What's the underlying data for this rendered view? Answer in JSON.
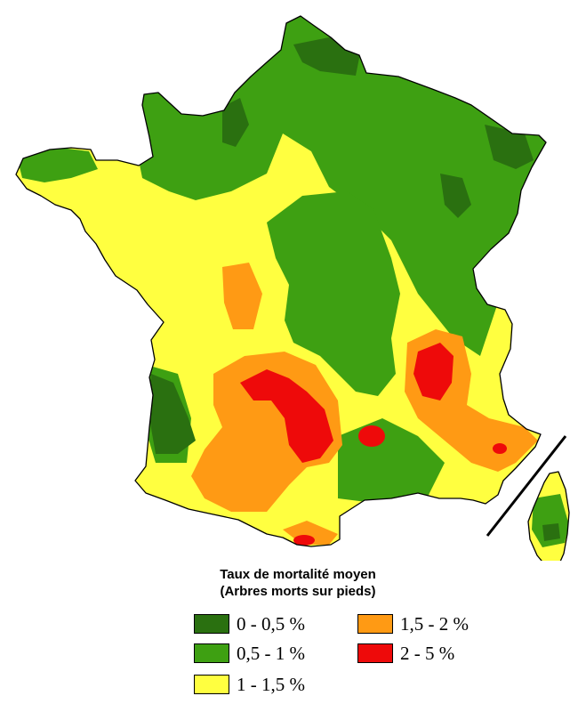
{
  "legend": {
    "title_line1": "Taux de mortalité moyen",
    "title_line2": "(Arbres morts sur pieds)",
    "classes": [
      {
        "label": "0 - 0,5 %",
        "color": "#2a7010"
      },
      {
        "label": "0,5 - 1 %",
        "color": "#3ea012"
      },
      {
        "label": "1 - 1,5 %",
        "color": "#ffff40"
      },
      {
        "label": "1,5 - 2 %",
        "color": "#ff9a14"
      },
      {
        "label": "2 - 5 %",
        "color": "#ee0a0a"
      }
    ]
  },
  "colors": {
    "outline": "#000000",
    "background": "#ffffff"
  }
}
